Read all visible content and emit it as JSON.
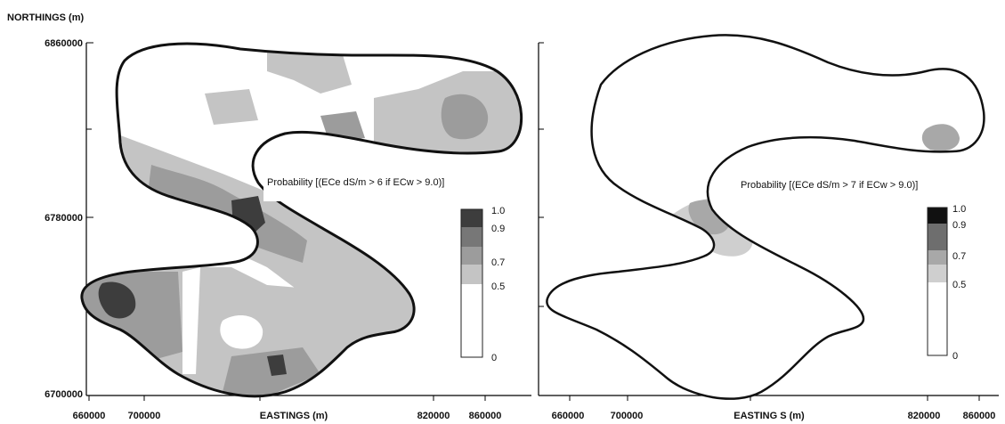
{
  "y_axis_title": "NORTHINGS (m)",
  "y_ticks": [
    "6860000",
    "6780000",
    "6700000"
  ],
  "x_ticks": [
    "660000",
    "700000",
    "820000",
    "860000"
  ],
  "x_axis_title_left": "EASTINGS (m)",
  "x_axis_title_right": "EASTING S (m)",
  "left_map": {
    "title": "Probability [(ECe dS/m > 6 if ECw > 9.0)]",
    "legend_labels": [
      "1.0",
      "0.9",
      "0.7",
      "0.5",
      "0"
    ],
    "legend_colors": [
      "#3d3d3d",
      "#777777",
      "#9c9c9c",
      "#c4c4c4",
      "#ffffff"
    ]
  },
  "right_map": {
    "title": "Probability [(ECe dS/m > 7 if ECw > 9.0)]",
    "legend_labels": [
      "1.0",
      "0.9",
      "0.7",
      "0.5",
      "0"
    ],
    "legend_colors": [
      "#111111",
      "#6e6e6e",
      "#a8a8a8",
      "#cfcfcf",
      "#ffffff"
    ]
  }
}
